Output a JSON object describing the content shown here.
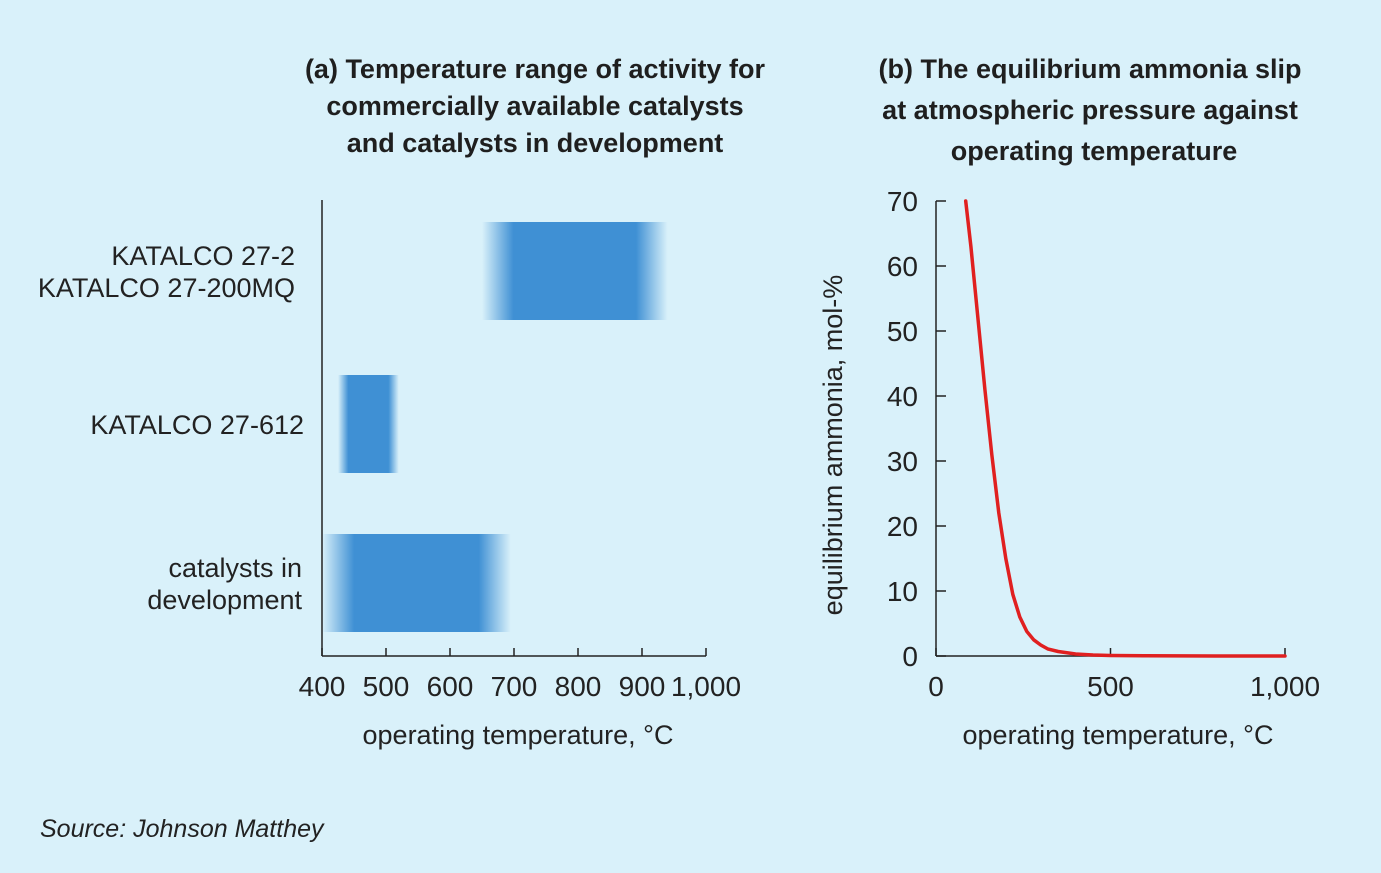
{
  "source": "Source: Johnson Matthey",
  "colors": {
    "background": "#d9f1fa",
    "bar": "#3f90d4",
    "line": "#e02020",
    "axis": "#222222"
  },
  "chart_data": [
    {
      "type": "bar",
      "orientation": "horizontal",
      "title_lines": [
        "(a) Temperature range of activity for",
        "commercially available catalysts",
        "and catalysts in development"
      ],
      "xlabel": "operating temperature, °C",
      "ylabel": "",
      "xlim": [
        400,
        1000
      ],
      "xticks": [
        400,
        500,
        600,
        700,
        800,
        900,
        1000
      ],
      "xtick_labels": [
        "400",
        "500",
        "600",
        "700",
        "800",
        "900",
        "1,000"
      ],
      "categories": [
        [
          "KATALCO 27-2",
          "KATALCO 27-200MQ"
        ],
        [
          "KATALCO 27-612"
        ],
        [
          "catalysts in",
          "development"
        ]
      ],
      "ranges": [
        [
          650,
          940
        ],
        [
          425,
          520
        ],
        [
          400,
          695
        ]
      ],
      "legend": "none",
      "grid": false
    },
    {
      "type": "line",
      "title_lines": [
        "(b) The equilibrium ammonia slip",
        "at atmospheric pressure against",
        "operating temperature"
      ],
      "xlabel": "operating temperature, °C",
      "ylabel": "equilibrium ammonia, mol-%",
      "xlim": [
        0,
        1000
      ],
      "ylim": [
        0,
        70
      ],
      "xticks": [
        0,
        500,
        1000
      ],
      "xtick_labels": [
        "0",
        "500",
        "1,000"
      ],
      "yticks": [
        0,
        10,
        20,
        30,
        40,
        50,
        60,
        70
      ],
      "series": [
        {
          "x": [
            85,
            100,
            120,
            140,
            160,
            180,
            200,
            220,
            240,
            260,
            280,
            300,
            320,
            350,
            400,
            450,
            500,
            600,
            700,
            800,
            900,
            1000
          ],
          "y": [
            70,
            63,
            52,
            41,
            31,
            22,
            15,
            9.5,
            6,
            3.8,
            2.5,
            1.7,
            1.1,
            0.7,
            0.3,
            0.15,
            0.08,
            0.03,
            0.01,
            0.005,
            0.003,
            0.002
          ]
        }
      ],
      "legend": "none",
      "grid": false
    }
  ]
}
